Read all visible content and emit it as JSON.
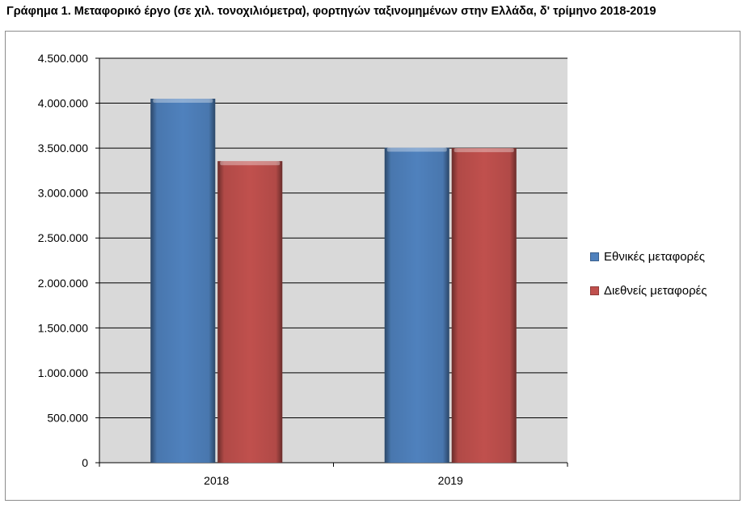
{
  "chart_data": {
    "type": "bar",
    "title": "Γράφημα 1. Μεταφορικό έργο (σε χιλ. τονοχιλιόμετρα), φορτηγών ταξινομημένων στην Ελλάδα, δ' τρίμηνο 2018-2019",
    "xlabel": "",
    "ylabel": "",
    "categories": [
      "2018",
      "2019"
    ],
    "series": [
      {
        "name": "Εθνικές μεταφορές",
        "color": "#4f81bd",
        "values": [
          4050000,
          3505000
        ]
      },
      {
        "name": "Διεθνείς μεταφορές",
        "color": "#c0504d",
        "values": [
          3355000,
          3500000
        ]
      }
    ],
    "ylim": [
      0,
      4500000
    ],
    "yticks": [
      0,
      500000,
      1000000,
      1500000,
      2000000,
      2500000,
      3000000,
      3500000,
      4000000,
      4500000
    ],
    "ytick_labels": [
      "0",
      "500.000",
      "1.000.000",
      "1.500.000",
      "2.000.000",
      "2.500.000",
      "3.000.000",
      "3.500.000",
      "4.000.000",
      "4.500.000"
    ],
    "grid": true,
    "legend_position": "right",
    "plot_background": "#d9d9d9"
  }
}
